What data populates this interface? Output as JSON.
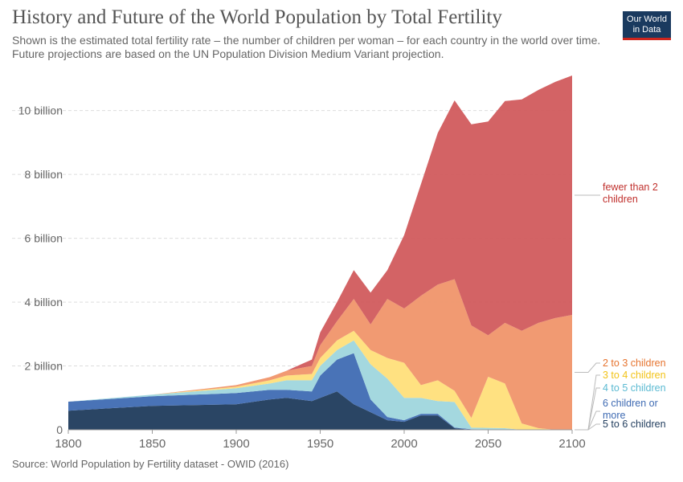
{
  "title": "History and Future of the World Population by Total Fertility",
  "subtitle": "Shown is the estimated total fertility rate – the number of children per woman – for each country in the world over time. Future projections are based on the UN Population Division Medium Variant projection.",
  "logo": {
    "line1": "Our World",
    "line2": "in Data"
  },
  "source": "Source: World Population by Fertility dataset - OWID (2016)",
  "chart_data": {
    "type": "area",
    "stacked": true,
    "title": "History and Future of the World Population by Total Fertility",
    "xlabel": "",
    "ylabel": "",
    "xlim": [
      1800,
      2100
    ],
    "ylim": [
      0,
      11200000000
    ],
    "x_ticks": [
      1800,
      1850,
      1900,
      1950,
      2000,
      2050,
      2100
    ],
    "y_ticks": [
      {
        "value": 0,
        "label": "0"
      },
      {
        "value": 2000000000,
        "label": "2 billion"
      },
      {
        "value": 4000000000,
        "label": "4 billion"
      },
      {
        "value": 6000000000,
        "label": "6 billion"
      },
      {
        "value": 8000000000,
        "label": "8 billion"
      },
      {
        "value": 10000000000,
        "label": "10 billion"
      }
    ],
    "grid": "horizontal dashed",
    "x": [
      1800,
      1850,
      1900,
      1920,
      1930,
      1945,
      1950,
      1960,
      1970,
      1980,
      1990,
      2000,
      2010,
      2020,
      2030,
      2040,
      2050,
      2060,
      2070,
      2080,
      2090,
      2100
    ],
    "series": [
      {
        "name": "5 to 6 children",
        "color": "#1f3b5c",
        "values": [
          0.6,
          0.75,
          0.8,
          0.95,
          1.0,
          0.9,
          1.0,
          1.2,
          0.8,
          0.55,
          0.3,
          0.25,
          0.45,
          0.45,
          0.05,
          0,
          0,
          0,
          0,
          0,
          0,
          0
        ]
      },
      {
        "name": "6 children or more",
        "color": "#3f6bb3",
        "values": [
          0.28,
          0.3,
          0.35,
          0.3,
          0.25,
          0.3,
          0.7,
          1.0,
          1.6,
          0.4,
          0.1,
          0.05,
          0.05,
          0.05,
          0.02,
          0.02,
          0.01,
          0,
          0,
          0,
          0,
          0
        ]
      },
      {
        "name": "4 to 5 children",
        "color": "#9fd6dd",
        "values": [
          0,
          0.05,
          0.15,
          0.2,
          0.3,
          0.35,
          0.3,
          0.3,
          0.4,
          1.1,
          1.2,
          0.7,
          0.5,
          0.4,
          0.8,
          0.05,
          0.05,
          0.05,
          0,
          0,
          0,
          0
        ]
      },
      {
        "name": "3 to 4 children",
        "color": "#ffdf7a",
        "values": [
          0,
          0,
          0.05,
          0.1,
          0.15,
          0.2,
          0.25,
          0.3,
          0.3,
          0.45,
          0.65,
          1.1,
          0.4,
          0.65,
          0.35,
          0.3,
          1.6,
          1.4,
          0.2,
          0.05,
          0,
          0
        ]
      },
      {
        "name": "2 to 3 children",
        "color": "#f0956a",
        "values": [
          0,
          0,
          0.05,
          0.1,
          0.15,
          0.25,
          0.4,
          0.6,
          1.0,
          0.8,
          1.85,
          1.7,
          2.8,
          3.0,
          3.5,
          2.9,
          1.3,
          1.9,
          2.9,
          3.3,
          3.5,
          3.6
        ]
      },
      {
        "name": "fewer than 2 children",
        "color": "#d15b5d",
        "values": [
          0,
          0,
          0,
          0,
          0,
          0.2,
          0.4,
          0.6,
          0.9,
          1.0,
          0.9,
          2.3,
          3.5,
          4.75,
          5.6,
          6.3,
          6.7,
          6.95,
          7.25,
          7.3,
          7.4,
          7.5
        ]
      }
    ],
    "value_unit": "billion",
    "legend_position": "right"
  }
}
